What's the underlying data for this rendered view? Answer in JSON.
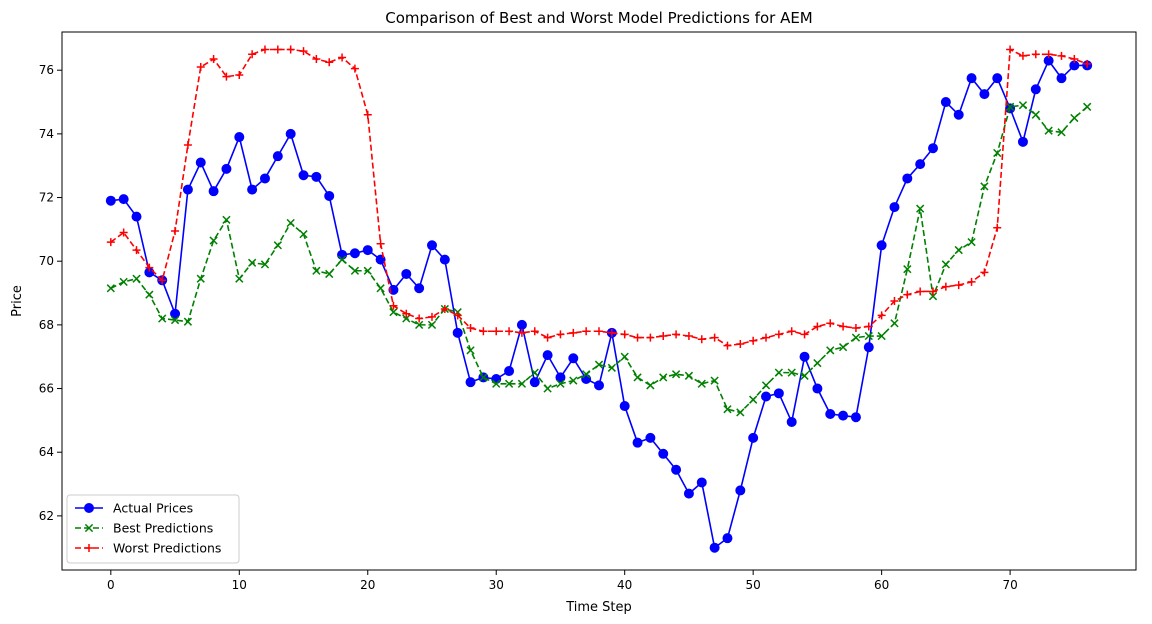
{
  "chart_data": {
    "type": "line",
    "title": "Comparison of Best and Worst Model Predictions for AEM",
    "xlabel": "Time Step",
    "ylabel": "Price",
    "xlim": [
      -3.8,
      79.8
    ],
    "ylim": [
      60.3,
      77.2
    ],
    "xticks": [
      0,
      10,
      20,
      30,
      40,
      50,
      60,
      70
    ],
    "yticks": [
      62,
      64,
      66,
      68,
      70,
      72,
      74,
      76
    ],
    "grid": false,
    "legend_position": "lower-left",
    "x": [
      0,
      1,
      2,
      3,
      4,
      5,
      6,
      7,
      8,
      9,
      10,
      11,
      12,
      13,
      14,
      15,
      16,
      17,
      18,
      19,
      20,
      21,
      22,
      23,
      24,
      25,
      26,
      27,
      28,
      29,
      30,
      31,
      32,
      33,
      34,
      35,
      36,
      37,
      38,
      39,
      40,
      41,
      42,
      43,
      44,
      45,
      46,
      47,
      48,
      49,
      50,
      51,
      52,
      53,
      54,
      55,
      56,
      57,
      58,
      59,
      60,
      61,
      62,
      63,
      64,
      65,
      66,
      67,
      68,
      69,
      70,
      71,
      72,
      73,
      74,
      75,
      76
    ],
    "series": [
      {
        "name": "Actual Prices",
        "color": "#0000ff",
        "linestyle": "solid",
        "marker": "circle",
        "values": [
          71.9,
          71.95,
          71.4,
          69.65,
          69.4,
          68.35,
          72.25,
          73.1,
          72.2,
          72.9,
          73.9,
          72.25,
          72.6,
          73.3,
          74.0,
          72.7,
          72.65,
          72.05,
          70.2,
          70.25,
          70.35,
          70.05,
          69.1,
          69.6,
          69.15,
          70.5,
          70.05,
          67.75,
          66.2,
          66.35,
          66.3,
          66.55,
          68.0,
          66.2,
          67.05,
          66.35,
          66.95,
          66.3,
          66.1,
          67.75,
          65.45,
          64.3,
          64.45,
          63.95,
          63.45,
          62.7,
          63.05,
          61.0,
          61.3,
          62.8,
          64.45,
          65.75,
          65.85,
          64.95,
          67.0,
          66.0,
          65.2,
          65.15,
          65.1,
          67.3,
          70.5,
          71.7,
          72.6,
          73.05,
          73.55,
          75.0,
          74.6,
          75.75,
          75.25,
          75.75,
          74.8,
          73.75,
          75.4,
          76.3,
          75.75,
          76.15,
          76.15
        ]
      },
      {
        "name": "Best Predictions",
        "color": "#008000",
        "linestyle": "dashed",
        "marker": "x",
        "values": [
          69.15,
          69.35,
          69.45,
          68.95,
          68.2,
          68.15,
          68.1,
          69.45,
          70.65,
          71.3,
          69.45,
          69.95,
          69.9,
          70.5,
          71.2,
          70.85,
          69.7,
          69.6,
          70.05,
          69.7,
          69.7,
          69.15,
          68.4,
          68.2,
          68.0,
          68.0,
          68.5,
          68.4,
          67.2,
          66.35,
          66.15,
          66.15,
          66.15,
          66.5,
          66.0,
          66.15,
          66.25,
          66.45,
          66.75,
          66.65,
          67.0,
          66.35,
          66.1,
          66.35,
          66.45,
          66.4,
          66.15,
          66.25,
          65.35,
          65.25,
          65.65,
          66.1,
          66.5,
          66.5,
          66.4,
          66.8,
          67.2,
          67.3,
          67.6,
          67.65,
          67.65,
          68.05,
          69.75,
          71.65,
          68.9,
          69.9,
          70.35,
          70.6,
          72.35,
          73.4,
          74.85,
          74.9,
          74.6,
          74.1,
          74.05,
          74.5,
          74.85
        ]
      },
      {
        "name": "Worst Predictions",
        "color": "#ff0000",
        "linestyle": "dashed",
        "marker": "plus",
        "values": [
          70.6,
          70.9,
          70.35,
          69.8,
          69.4,
          70.95,
          73.65,
          76.1,
          76.35,
          75.8,
          75.85,
          76.5,
          76.65,
          76.65,
          76.65,
          76.6,
          76.35,
          76.25,
          76.4,
          76.05,
          74.6,
          70.55,
          68.6,
          68.35,
          68.2,
          68.25,
          68.5,
          68.3,
          67.9,
          67.8,
          67.8,
          67.8,
          67.75,
          67.8,
          67.6,
          67.7,
          67.75,
          67.8,
          67.8,
          67.75,
          67.7,
          67.6,
          67.6,
          67.65,
          67.7,
          67.65,
          67.55,
          67.6,
          67.35,
          67.4,
          67.5,
          67.6,
          67.7,
          67.8,
          67.7,
          67.95,
          68.05,
          67.95,
          67.9,
          67.95,
          68.3,
          68.75,
          68.95,
          69.05,
          69.05,
          69.2,
          69.25,
          69.35,
          69.65,
          71.05,
          76.65,
          76.45,
          76.5,
          76.5,
          76.45,
          76.35,
          76.2
        ]
      }
    ]
  }
}
